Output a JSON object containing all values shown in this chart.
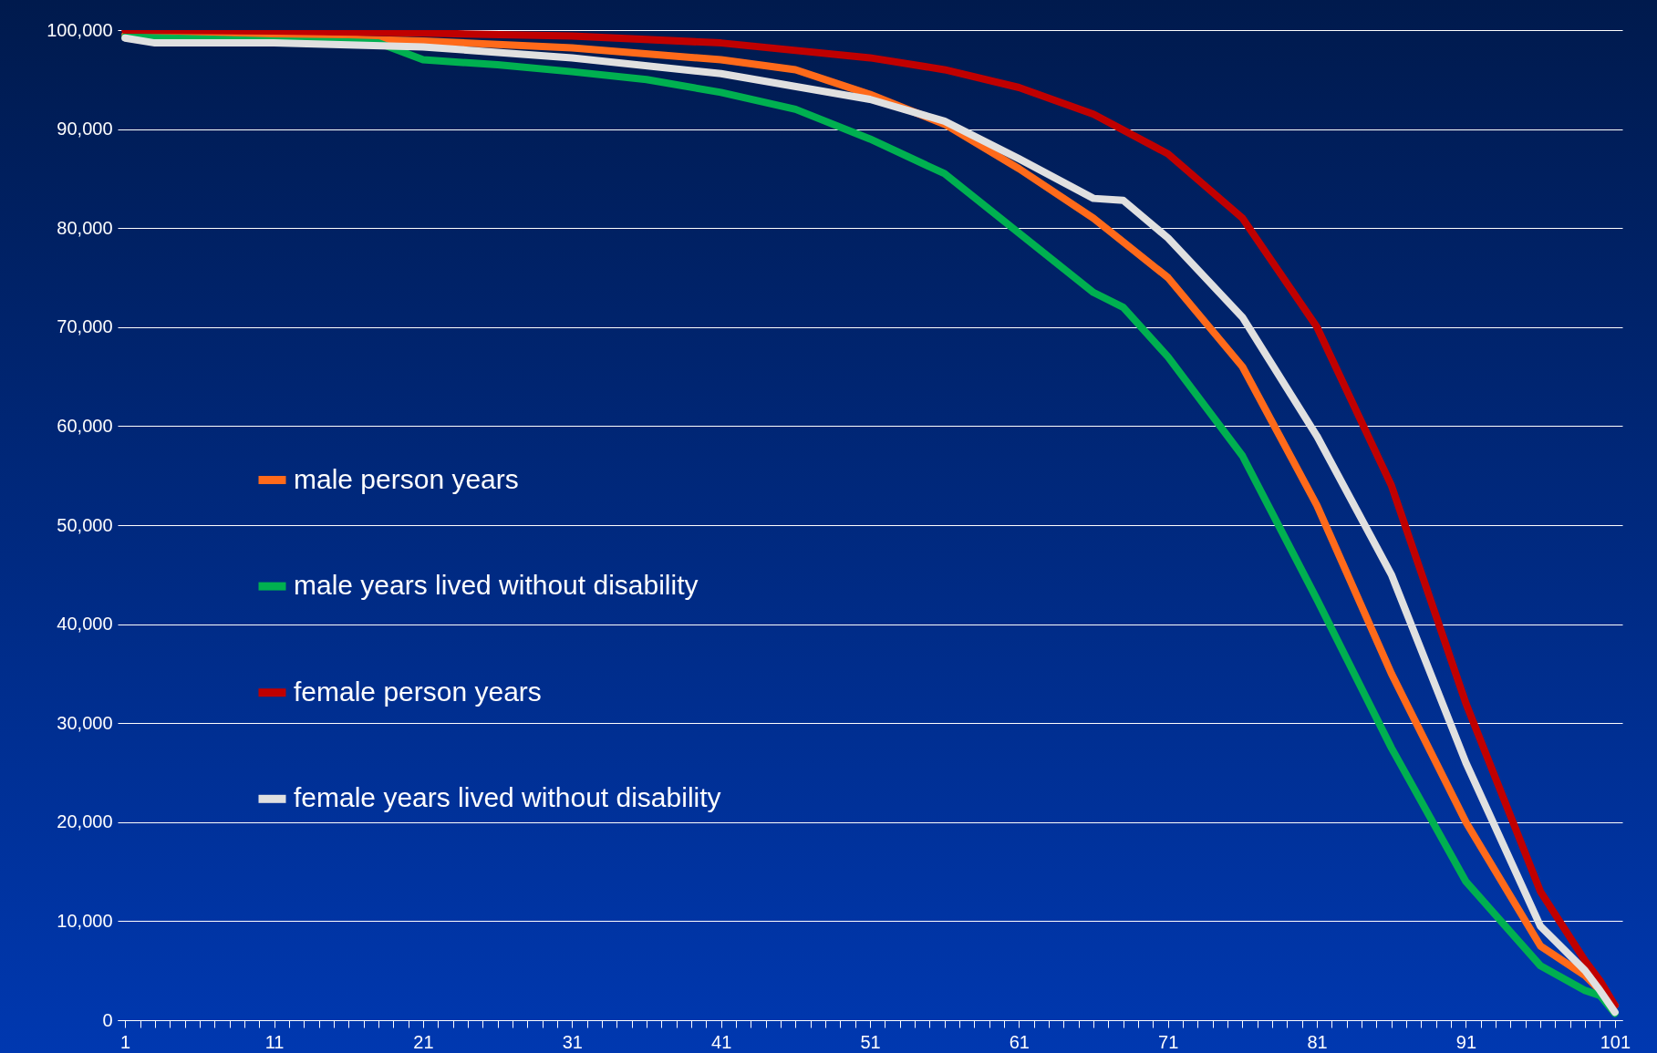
{
  "chart_data": {
    "type": "line",
    "xlim": [
      0.5,
      101.5
    ],
    "ylim": [
      0,
      100000
    ],
    "xticks": [
      1,
      {
        "value": 2,
        "label": null
      },
      {
        "value": 3,
        "label": null
      },
      {
        "value": 4,
        "label": null
      },
      {
        "value": 5,
        "label": null
      },
      {
        "value": 6,
        "label": null
      },
      {
        "value": 7,
        "label": null
      },
      {
        "value": 8,
        "label": null
      },
      {
        "value": 9,
        "label": null
      },
      {
        "value": 10,
        "label": null
      },
      11,
      {
        "value": 12,
        "label": null
      },
      {
        "value": 13,
        "label": null
      },
      {
        "value": 14,
        "label": null
      },
      {
        "value": 15,
        "label": null
      },
      {
        "value": 16,
        "label": null
      },
      {
        "value": 17,
        "label": null
      },
      {
        "value": 18,
        "label": null
      },
      {
        "value": 19,
        "label": null
      },
      {
        "value": 20,
        "label": null
      },
      21,
      {
        "value": 22,
        "label": null
      },
      {
        "value": 23,
        "label": null
      },
      {
        "value": 24,
        "label": null
      },
      {
        "value": 25,
        "label": null
      },
      {
        "value": 26,
        "label": null
      },
      {
        "value": 27,
        "label": null
      },
      {
        "value": 28,
        "label": null
      },
      {
        "value": 29,
        "label": null
      },
      {
        "value": 30,
        "label": null
      },
      31,
      {
        "value": 32,
        "label": null
      },
      {
        "value": 33,
        "label": null
      },
      {
        "value": 34,
        "label": null
      },
      {
        "value": 35,
        "label": null
      },
      {
        "value": 36,
        "label": null
      },
      {
        "value": 37,
        "label": null
      },
      {
        "value": 38,
        "label": null
      },
      {
        "value": 39,
        "label": null
      },
      {
        "value": 40,
        "label": null
      },
      41,
      {
        "value": 42,
        "label": null
      },
      {
        "value": 43,
        "label": null
      },
      {
        "value": 44,
        "label": null
      },
      {
        "value": 45,
        "label": null
      },
      {
        "value": 46,
        "label": null
      },
      {
        "value": 47,
        "label": null
      },
      {
        "value": 48,
        "label": null
      },
      {
        "value": 49,
        "label": null
      },
      {
        "value": 50,
        "label": null
      },
      51,
      {
        "value": 52,
        "label": null
      },
      {
        "value": 53,
        "label": null
      },
      {
        "value": 54,
        "label": null
      },
      {
        "value": 55,
        "label": null
      },
      {
        "value": 56,
        "label": null
      },
      {
        "value": 57,
        "label": null
      },
      {
        "value": 58,
        "label": null
      },
      {
        "value": 59,
        "label": null
      },
      {
        "value": 60,
        "label": null
      },
      61,
      {
        "value": 62,
        "label": null
      },
      {
        "value": 63,
        "label": null
      },
      {
        "value": 64,
        "label": null
      },
      {
        "value": 65,
        "label": null
      },
      {
        "value": 66,
        "label": null
      },
      {
        "value": 67,
        "label": null
      },
      {
        "value": 68,
        "label": null
      },
      {
        "value": 69,
        "label": null
      },
      {
        "value": 70,
        "label": null
      },
      71,
      {
        "value": 72,
        "label": null
      },
      {
        "value": 73,
        "label": null
      },
      {
        "value": 74,
        "label": null
      },
      {
        "value": 75,
        "label": null
      },
      {
        "value": 76,
        "label": null
      },
      {
        "value": 77,
        "label": null
      },
      {
        "value": 78,
        "label": null
      },
      {
        "value": 79,
        "label": null
      },
      {
        "value": 80,
        "label": null
      },
      81,
      {
        "value": 82,
        "label": null
      },
      {
        "value": 83,
        "label": null
      },
      {
        "value": 84,
        "label": null
      },
      {
        "value": 85,
        "label": null
      },
      {
        "value": 86,
        "label": null
      },
      {
        "value": 87,
        "label": null
      },
      {
        "value": 88,
        "label": null
      },
      {
        "value": 89,
        "label": null
      },
      {
        "value": 90,
        "label": null
      },
      91,
      {
        "value": 92,
        "label": null
      },
      {
        "value": 93,
        "label": null
      },
      {
        "value": 94,
        "label": null
      },
      {
        "value": 95,
        "label": null
      },
      {
        "value": 96,
        "label": null
      },
      {
        "value": 97,
        "label": null
      },
      {
        "value": 98,
        "label": null
      },
      {
        "value": 99,
        "label": null
      },
      {
        "value": 100,
        "label": null
      },
      101
    ],
    "yticks": [
      {
        "value": 0,
        "label": "0"
      },
      {
        "value": 10000,
        "label": "10,000"
      },
      {
        "value": 20000,
        "label": "20,000"
      },
      {
        "value": 30000,
        "label": "30,000"
      },
      {
        "value": 40000,
        "label": "40,000"
      },
      {
        "value": 50000,
        "label": "50,000"
      },
      {
        "value": 60000,
        "label": "60,000"
      },
      {
        "value": 70000,
        "label": "70,000"
      },
      {
        "value": 80000,
        "label": "80,000"
      },
      {
        "value": 90000,
        "label": "90,000"
      },
      {
        "value": 100000,
        "label": "100,000"
      }
    ],
    "grid": "y",
    "legend": "left",
    "marker": "none",
    "line_style": "solid",
    "series": [
      {
        "name": "male person years",
        "color": "#ff6a1a",
        "x": [
          1,
          11,
          21,
          31,
          41,
          46,
          51,
          56,
          61,
          66,
          71,
          76,
          81,
          86,
          91,
          96,
          99,
          101
        ],
        "values": [
          99500,
          99300,
          98900,
          98200,
          97000,
          96000,
          93500,
          90500,
          86000,
          81000,
          75000,
          66000,
          52000,
          35000,
          20000,
          7500,
          4500,
          1500
        ]
      },
      {
        "name": "male years lived without disability",
        "color": "#00b050",
        "x": [
          1,
          11,
          16,
          18,
          21,
          26,
          31,
          36,
          41,
          46,
          51,
          56,
          61,
          66,
          68,
          71,
          76,
          81,
          86,
          91,
          96,
          99,
          100,
          101
        ],
        "values": [
          99300,
          98900,
          98800,
          98700,
          97000,
          96500,
          95800,
          95000,
          93700,
          92000,
          89000,
          85500,
          79500,
          73500,
          72000,
          67000,
          57000,
          42500,
          27500,
          14000,
          5500,
          3000,
          2500,
          700
        ]
      },
      {
        "name": "female person years",
        "color": "#c00000",
        "x": [
          1,
          11,
          21,
          31,
          41,
          51,
          56,
          61,
          66,
          71,
          76,
          81,
          86,
          91,
          96,
          99,
          100,
          101
        ],
        "values": [
          100000,
          99900,
          99700,
          99400,
          98700,
          97200,
          96000,
          94200,
          91500,
          87500,
          81000,
          70000,
          54000,
          32000,
          13000,
          6000,
          4000,
          1500
        ]
      },
      {
        "name": "female years lived without disability",
        "color": "#e0e0e0",
        "x": [
          1,
          3,
          11,
          21,
          31,
          41,
          51,
          56,
          61,
          66,
          68,
          71,
          76,
          81,
          86,
          91,
          96,
          99,
          100,
          101
        ],
        "values": [
          99200,
          98700,
          98700,
          98300,
          97200,
          95600,
          93000,
          90800,
          87000,
          83000,
          82800,
          79000,
          71000,
          59000,
          45000,
          26000,
          9500,
          5000,
          3000,
          800
        ]
      }
    ]
  }
}
